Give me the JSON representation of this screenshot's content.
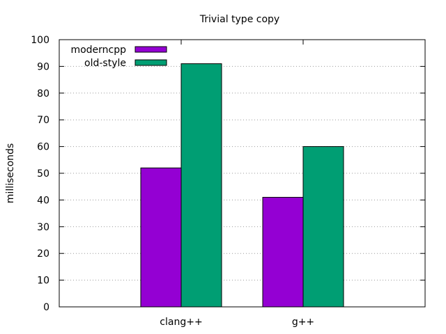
{
  "chart_data": {
    "type": "bar",
    "title": "Trivial type copy",
    "xlabel": "",
    "ylabel": "milliseconds",
    "categories": [
      "clang++",
      "g++"
    ],
    "series": [
      {
        "name": "moderncpp",
        "values": [
          52,
          41
        ],
        "color": "#9400d3"
      },
      {
        "name": "old-style",
        "values": [
          91,
          60
        ],
        "color": "#009e73"
      }
    ],
    "ylim": [
      0,
      100
    ],
    "yticks": [
      0,
      10,
      20,
      30,
      40,
      50,
      60,
      70,
      80,
      90,
      100
    ],
    "grid": "horizontal dotted",
    "legend_position": "top-left"
  }
}
